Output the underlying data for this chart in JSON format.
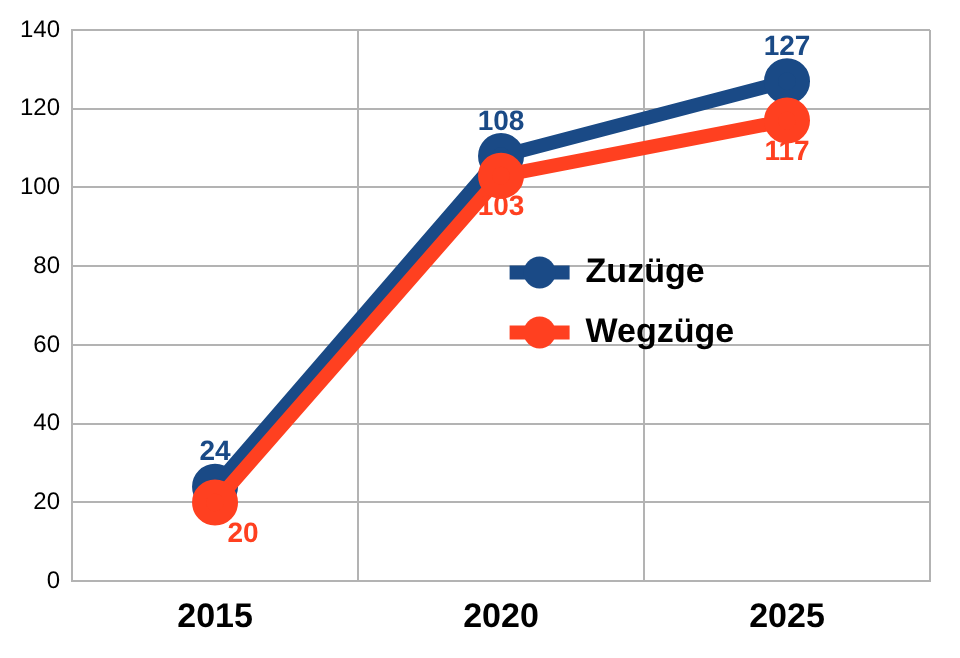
{
  "chart_data": {
    "type": "line",
    "categories": [
      "2015",
      "2020",
      "2025"
    ],
    "series": [
      {
        "name": "Zuzüge",
        "color": "#1a4a86",
        "values": [
          24,
          108,
          127
        ]
      },
      {
        "name": "Wegzüge",
        "color": "#ff4020",
        "values": [
          20,
          103,
          117
        ]
      }
    ],
    "ylim": [
      0,
      140
    ],
    "yticks": [
      0,
      20,
      40,
      60,
      80,
      100,
      120,
      140
    ],
    "grid": true,
    "legend": "right",
    "marker": "circle",
    "line_style": "solid",
    "data_labels": true
  }
}
